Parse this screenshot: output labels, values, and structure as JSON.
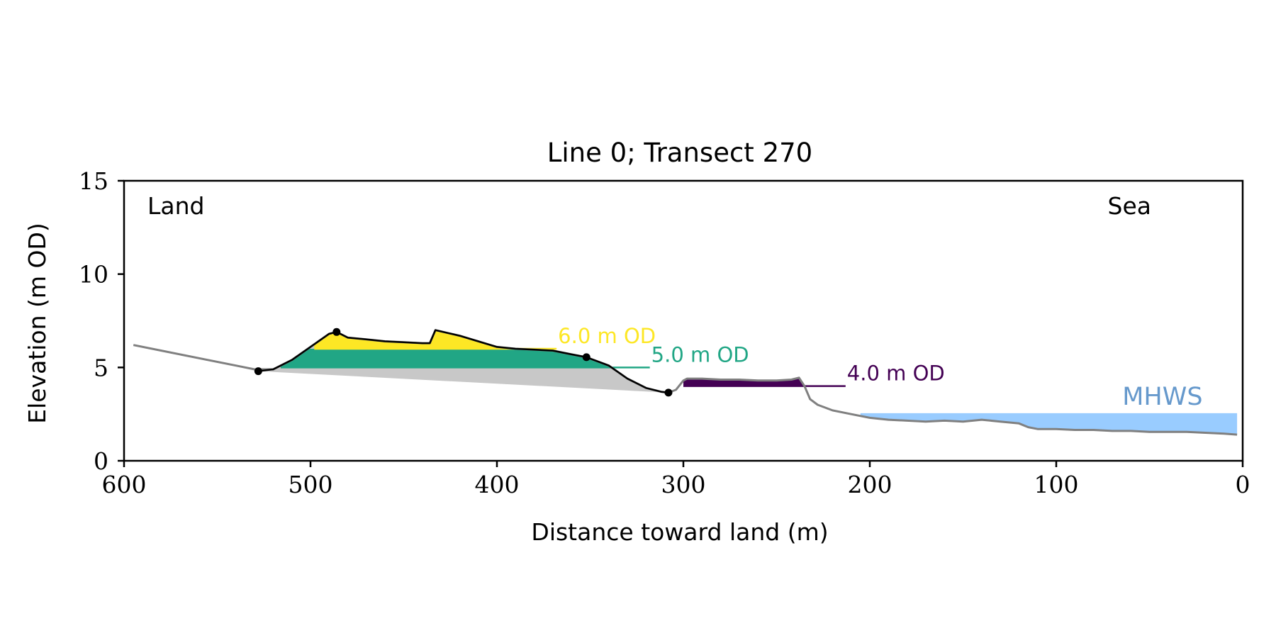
{
  "chart_data": {
    "type": "area",
    "title": "Line 0; Transect 270",
    "xlabel": "Distance toward land (m)",
    "ylabel": "Elevation (m OD)",
    "xlim": [
      600,
      0
    ],
    "ylim": [
      0,
      15
    ],
    "x_reversed": true,
    "x_ticks": [
      600,
      500,
      400,
      300,
      200,
      100,
      0
    ],
    "y_ticks": [
      0,
      5,
      10,
      15
    ],
    "grid": false,
    "corner_labels": {
      "left": "Land",
      "right": "Sea"
    },
    "colors": {
      "terrain": "#808080",
      "dune_outline": "#000000",
      "base_fill": "#c8c8c8",
      "level_6": "#fde725",
      "level_5": "#21a685",
      "level_4": "#440154",
      "mhws": "#99ccff",
      "mhws_label": "#6699cc"
    },
    "terrain_profile": {
      "x": [
        595,
        580,
        560,
        540,
        530,
        520,
        510,
        500,
        490,
        486,
        480,
        470,
        460,
        450,
        440,
        436,
        433,
        420,
        410,
        400,
        390,
        380,
        370,
        360,
        352,
        340,
        330,
        320,
        312,
        308,
        304,
        300,
        298,
        290,
        280,
        270,
        260,
        250,
        242,
        238,
        235,
        232,
        228,
        220,
        210,
        200,
        190,
        180,
        170,
        160,
        150,
        140,
        130,
        125,
        120,
        115,
        110,
        100,
        90,
        80,
        70,
        60,
        50,
        40,
        30,
        20,
        10,
        3
      ],
      "y": [
        6.2,
        5.9,
        5.5,
        5.1,
        4.9,
        4.9,
        5.4,
        6.1,
        6.8,
        6.9,
        6.6,
        6.5,
        6.4,
        6.35,
        6.3,
        6.3,
        7.0,
        6.7,
        6.4,
        6.1,
        6.0,
        5.95,
        5.9,
        5.7,
        5.55,
        5.1,
        4.4,
        3.9,
        3.7,
        3.65,
        3.8,
        4.3,
        4.4,
        4.4,
        4.35,
        4.35,
        4.3,
        4.3,
        4.35,
        4.45,
        4.0,
        3.3,
        3.0,
        2.7,
        2.5,
        2.3,
        2.2,
        2.15,
        2.1,
        2.15,
        2.1,
        2.2,
        2.1,
        2.05,
        2.0,
        1.8,
        1.7,
        1.7,
        1.65,
        1.65,
        1.6,
        1.6,
        1.55,
        1.55,
        1.55,
        1.5,
        1.45,
        1.4
      ]
    },
    "dune_outline": {
      "x": [
        528,
        520,
        510,
        500,
        490,
        486,
        480,
        470,
        460,
        450,
        440,
        436,
        433,
        420,
        410,
        400,
        390,
        380,
        370,
        360,
        352,
        340,
        330,
        320,
        312,
        308
      ],
      "y": [
        4.8,
        4.9,
        5.4,
        6.1,
        6.8,
        6.9,
        6.6,
        6.5,
        6.4,
        6.35,
        6.3,
        6.3,
        7.0,
        6.7,
        6.4,
        6.1,
        6.0,
        5.95,
        5.9,
        5.7,
        5.55,
        5.1,
        4.4,
        3.9,
        3.7,
        3.65
      ]
    },
    "dune_points": {
      "x": [
        528,
        486,
        352,
        308
      ],
      "y": [
        4.8,
        6.9,
        5.55,
        3.65
      ]
    },
    "dune_base_line": {
      "x": [
        528,
        308
      ],
      "y": [
        4.8,
        3.65
      ]
    },
    "levels": [
      {
        "label": "6.0 m OD",
        "elevation": 6.0,
        "x_start": 498,
        "x_end": 368,
        "color_key": "level_6"
      },
      {
        "label": "5.0 m OD",
        "elevation": 5.0,
        "x_start": 516,
        "x_end": 318,
        "color_key": "level_5"
      },
      {
        "label": "4.0 m OD",
        "elevation": 4.0,
        "x_start": 300,
        "x_end": 213,
        "color_key": "level_4"
      }
    ],
    "mhws": {
      "label": "MHWS",
      "elevation": 2.55,
      "x_start": 205,
      "x_end": 3
    }
  }
}
